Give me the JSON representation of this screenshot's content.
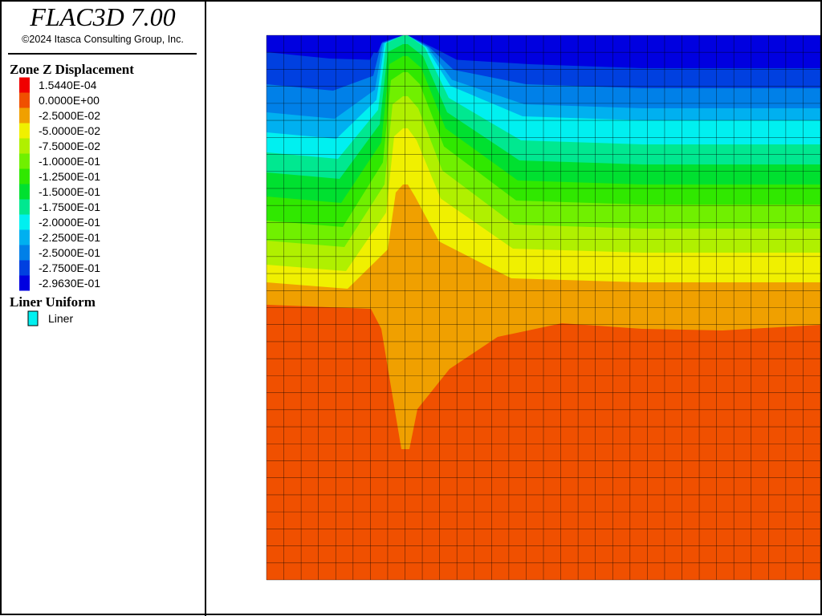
{
  "header": {
    "title": "FLAC3D 7.00",
    "copyright": "©2024 Itasca Consulting Group, Inc."
  },
  "legend": {
    "title": "Zone Z Displacement",
    "items": [
      {
        "label": "1.5440E-04",
        "color": "#f00000"
      },
      {
        "label": "0.0000E+00",
        "color": "#f05000"
      },
      {
        "label": "-2.5000E-02",
        "color": "#f0a000"
      },
      {
        "label": "-5.0000E-02",
        "color": "#f0f000"
      },
      {
        "label": "-7.5000E-02",
        "color": "#b0f000"
      },
      {
        "label": "-1.0000E-01",
        "color": "#70f000"
      },
      {
        "label": "-1.2500E-01",
        "color": "#30e800"
      },
      {
        "label": "-1.5000E-01",
        "color": "#00e030"
      },
      {
        "label": "-1.7500E-01",
        "color": "#00e890"
      },
      {
        "label": "-2.0000E-01",
        "color": "#00f0f0"
      },
      {
        "label": "-2.2500E-01",
        "color": "#00b0f0"
      },
      {
        "label": "-2.5000E-01",
        "color": "#0080e8"
      },
      {
        "label": "-2.7500E-01",
        "color": "#0040e0"
      },
      {
        "label": "-2.9630E-01",
        "color": "#0000e0"
      }
    ]
  },
  "liner_legend": {
    "title": "Liner Uniform",
    "items": [
      {
        "label": "Liner",
        "color": "#00f0f0"
      }
    ]
  }
}
